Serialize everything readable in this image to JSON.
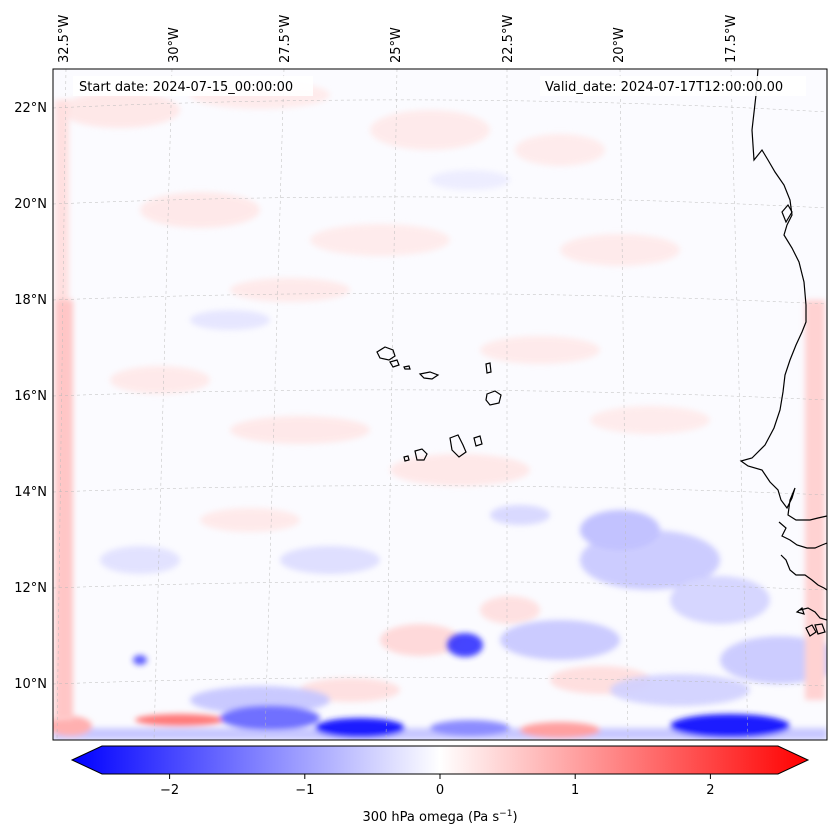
{
  "map": {
    "start_date": "Start date: 2024-07-15_00:00:00",
    "valid_date": "Valid_date: 2024-07-17T12:00:00.00",
    "lon_labels": [
      "32.5°W",
      "30°W",
      "27.5°W",
      "25°W",
      "22.5°W",
      "20°W",
      "17.5°W"
    ],
    "lat_labels": [
      "22°N",
      "20°N",
      "18°N",
      "16°N",
      "14°N",
      "12°N",
      "10°N"
    ]
  },
  "colorbar": {
    "label": "300 hPa omega (Pa s",
    "label_sup": "−1",
    "label_close": ")",
    "ticks": [
      "−2",
      "−1",
      "0",
      "1",
      "2"
    ],
    "tick_values": [
      -2,
      -1,
      0,
      1,
      2
    ],
    "range": [
      -2.5,
      2.5
    ],
    "color_neg": "#0000ff",
    "color_mid": "#ffffff",
    "color_pos": "#ff0000"
  }
}
